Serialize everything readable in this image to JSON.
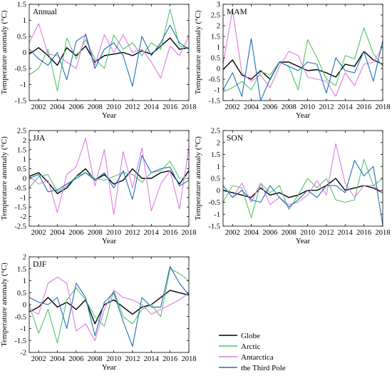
{
  "chart_data": [
    {
      "type": "line",
      "title": "Annual",
      "xlabel": "Year",
      "ylabel": "Temperature anomaly (°C)",
      "xlim": [
        2001,
        2018
      ],
      "ylim": [
        -1.5,
        1.5
      ],
      "yticks": [
        -1.5,
        -1,
        -0.5,
        0,
        0.5,
        1,
        1.5
      ],
      "xticks": [
        2002,
        2004,
        2006,
        2008,
        2010,
        2012,
        2014,
        2016,
        2018
      ],
      "x": [
        2001,
        2002,
        2003,
        2004,
        2005,
        2006,
        2007,
        2008,
        2009,
        2010,
        2011,
        2012,
        2013,
        2014,
        2015,
        2016,
        2017,
        2018
      ],
      "series": [
        {
          "name": "Globe",
          "color": "#000000",
          "values": [
            -0.05,
            0.15,
            -0.1,
            -0.4,
            0.15,
            -0.1,
            0.2,
            -0.3,
            -0.1,
            -0.05,
            0.0,
            -0.1,
            0.05,
            -0.05,
            0.2,
            0.45,
            0.1,
            0.15
          ]
        },
        {
          "name": "Arctic",
          "color": "#56c26b",
          "values": [
            -0.7,
            -0.5,
            0.1,
            -1.2,
            0.45,
            -0.2,
            0.4,
            -0.2,
            -0.5,
            0.55,
            0.1,
            0.3,
            -0.1,
            0.3,
            0.1,
            1.35,
            0.2,
            0.15
          ]
        },
        {
          "name": "Antarctica",
          "color": "#e07be0",
          "values": [
            0.3,
            0.9,
            -0.05,
            -0.1,
            -0.3,
            -0.5,
            0.6,
            -0.4,
            0.55,
            0.0,
            0.55,
            0.0,
            0.1,
            -0.3,
            -0.8,
            0.2,
            -0.1,
            0.5
          ]
        },
        {
          "name": "the Third Pole",
          "color": "#1f6fb5",
          "values": [
            0.1,
            -0.2,
            -0.4,
            0.0,
            -0.85,
            0.35,
            0.55,
            -0.5,
            0.1,
            0.3,
            -0.1,
            -1.05,
            0.5,
            -0.1,
            0.3,
            0.85,
            0.3,
            0.1
          ]
        }
      ]
    },
    {
      "type": "line",
      "title": "MAM",
      "xlabel": "Year",
      "ylabel": "Temperature anomaly (°C)",
      "xlim": [
        2001,
        2018
      ],
      "ylim": [
        -1.5,
        3
      ],
      "yticks": [
        -1.5,
        -1,
        -0.5,
        0,
        0.5,
        1,
        1.5,
        2,
        2.5,
        3
      ],
      "xticks": [
        2002,
        2004,
        2006,
        2008,
        2010,
        2012,
        2014,
        2016,
        2018
      ],
      "x": [
        2001,
        2002,
        2003,
        2004,
        2005,
        2006,
        2007,
        2008,
        2009,
        2010,
        2011,
        2012,
        2013,
        2014,
        2015,
        2016,
        2017,
        2018
      ],
      "series": [
        {
          "name": "Globe",
          "color": "#000000",
          "values": [
            -0.05,
            0.4,
            -0.3,
            -0.5,
            -0.1,
            -0.5,
            0.3,
            0.3,
            0.1,
            -0.1,
            -0.05,
            -0.2,
            -0.4,
            0.2,
            0.1,
            0.8,
            0.4,
            0.2
          ]
        },
        {
          "name": "Arctic",
          "color": "#56c26b",
          "values": [
            -1.1,
            -0.9,
            -0.6,
            -1.0,
            -0.15,
            -0.3,
            0.3,
            0.1,
            -1.0,
            1.35,
            0.5,
            -0.5,
            -0.8,
            0.6,
            0.45,
            1.9,
            0.7,
            0.1
          ]
        },
        {
          "name": "Antarctica",
          "color": "#e07be0",
          "values": [
            0.2,
            2.75,
            -0.2,
            -0.6,
            -0.3,
            -0.9,
            0.1,
            0.8,
            0.6,
            -0.4,
            -0.5,
            -0.6,
            -1.3,
            -0.2,
            -0.8,
            0.2,
            0.3,
            1.0
          ]
        },
        {
          "name": "the Third Pole",
          "color": "#1f6fb5",
          "values": [
            -1.0,
            -0.2,
            -1.3,
            1.4,
            -1.5,
            -0.5,
            0.3,
            0.1,
            -0.1,
            0.3,
            0.2,
            -1.15,
            0.5,
            -0.1,
            -0.2,
            0.8,
            -0.6,
            1.3
          ]
        }
      ]
    },
    {
      "type": "line",
      "title": "JJA",
      "xlabel": "Year",
      "ylabel": "Temperature anomaly (°C)",
      "xlim": [
        2001,
        2018
      ],
      "ylim": [
        -2.5,
        2.5
      ],
      "yticks": [
        -2.5,
        -2,
        -1.5,
        -1,
        -0.5,
        0,
        0.5,
        1,
        1.5,
        2,
        2.5
      ],
      "xticks": [
        2002,
        2004,
        2006,
        2008,
        2010,
        2012,
        2014,
        2016,
        2018
      ],
      "x": [
        2001,
        2002,
        2003,
        2004,
        2005,
        2006,
        2007,
        2008,
        2009,
        2010,
        2011,
        2012,
        2013,
        2014,
        2015,
        2016,
        2017,
        2018
      ],
      "series": [
        {
          "name": "Globe",
          "color": "#000000",
          "values": [
            0.1,
            0.3,
            -0.2,
            -0.8,
            -0.5,
            0.1,
            0.5,
            -0.1,
            0.2,
            -0.3,
            -0.1,
            0.5,
            0.0,
            0.0,
            0.3,
            0.4,
            -0.3,
            0.4
          ]
        },
        {
          "name": "Arctic",
          "color": "#56c26b",
          "values": [
            -0.5,
            0.1,
            0.2,
            -0.7,
            -0.4,
            0.1,
            0.3,
            0.0,
            -0.1,
            0.1,
            0.3,
            0.2,
            -0.2,
            0.3,
            0.4,
            0.9,
            0.0,
            0.0
          ]
        },
        {
          "name": "Antarctica",
          "color": "#e07be0",
          "values": [
            0.1,
            -0.3,
            -0.1,
            -1.8,
            0.2,
            0.6,
            2.1,
            -0.4,
            1.5,
            -1.9,
            1.4,
            -0.5,
            1.6,
            -1.7,
            -0.3,
            0.4,
            -1.6,
            1.6
          ]
        },
        {
          "name": "the Third Pole",
          "color": "#1f6fb5",
          "values": [
            0.0,
            0.2,
            -0.7,
            -0.6,
            -0.3,
            0.0,
            0.3,
            -0.1,
            0.3,
            -0.5,
            0.4,
            -1.1,
            1.2,
            0.3,
            0.5,
            0.6,
            -0.4,
            -0.1
          ]
        }
      ]
    },
    {
      "type": "line",
      "title": "SON",
      "xlabel": "Year",
      "ylabel": "Temperature anomaly (°C)",
      "xlim": [
        2001,
        2018
      ],
      "ylim": [
        -1.5,
        2.5
      ],
      "yticks": [
        -1.5,
        -1,
        -0.5,
        0,
        0.5,
        1,
        1.5,
        2,
        2.5
      ],
      "xticks": [
        2002,
        2004,
        2006,
        2008,
        2010,
        2012,
        2014,
        2016,
        2018
      ],
      "x": [
        2001,
        2002,
        2003,
        2004,
        2005,
        2006,
        2007,
        2008,
        2009,
        2010,
        2011,
        2012,
        2013,
        2014,
        2015,
        2016,
        2017,
        2018
      ],
      "series": [
        {
          "name": "Globe",
          "color": "#000000",
          "values": [
            0.0,
            -0.1,
            -0.2,
            -0.3,
            0.1,
            -0.2,
            -0.1,
            -0.3,
            -0.2,
            0.0,
            0.0,
            0.2,
            0.5,
            0.0,
            0.1,
            0.2,
            0.1,
            -0.1
          ]
        },
        {
          "name": "Arctic",
          "color": "#56c26b",
          "values": [
            -0.5,
            0.2,
            0.1,
            -1.15,
            0.3,
            -0.1,
            0.2,
            -0.8,
            -0.2,
            0.5,
            0.1,
            0.5,
            -0.4,
            -0.5,
            -0.4,
            1.3,
            0.2,
            0.5
          ]
        },
        {
          "name": "Antarctica",
          "color": "#e07be0",
          "values": [
            0.2,
            -0.3,
            0.3,
            -0.5,
            0.3,
            -0.6,
            -0.3,
            -0.6,
            -0.5,
            -0.2,
            0.4,
            -0.2,
            1.95,
            0.3,
            -0.3,
            0.2,
            0.2,
            -0.1
          ]
        },
        {
          "name": "the Third Pole",
          "color": "#1f6fb5",
          "values": [
            0.2,
            -0.3,
            0.0,
            -0.4,
            -0.5,
            0.2,
            -0.3,
            -0.7,
            -0.4,
            0.0,
            -0.3,
            0.2,
            0.2,
            -0.1,
            1.25,
            0.6,
            1.0,
            -1.45
          ]
        }
      ]
    },
    {
      "type": "line",
      "title": "DJF",
      "xlabel": "Year",
      "ylabel": "Temperature anomaly (°C)",
      "xlim": [
        2001,
        2018
      ],
      "ylim": [
        -2,
        2
      ],
      "yticks": [
        -2,
        -1.5,
        -1,
        -0.5,
        0,
        0.5,
        1,
        1.5,
        2
      ],
      "xticks": [
        2002,
        2004,
        2006,
        2008,
        2010,
        2012,
        2014,
        2016,
        2018
      ],
      "x": [
        2001,
        2002,
        2003,
        2004,
        2005,
        2006,
        2007,
        2008,
        2009,
        2010,
        2011,
        2012,
        2013,
        2014,
        2015,
        2016,
        2017,
        2018
      ],
      "series": [
        {
          "name": "Globe",
          "color": "#000000",
          "values": [
            -0.3,
            -0.1,
            0.3,
            -0.1,
            0.1,
            -0.2,
            0.2,
            -0.8,
            0.0,
            0.2,
            -0.1,
            -0.4,
            -0.1,
            0.0,
            0.3,
            0.6,
            0.5,
            0.4
          ]
        },
        {
          "name": "Arctic",
          "color": "#56c26b",
          "values": [
            0.0,
            -1.2,
            -0.2,
            -1.6,
            0.2,
            0.7,
            0.2,
            -0.5,
            -0.9,
            0.6,
            -0.5,
            -0.8,
            -0.2,
            0.0,
            -0.5,
            1.5,
            1.3,
            1.0
          ]
        },
        {
          "name": "Antarctica",
          "color": "#e07be0",
          "values": [
            -0.2,
            -0.4,
            0.9,
            1.15,
            0.9,
            -1.1,
            -0.8,
            -1.5,
            -0.2,
            0.6,
            0.3,
            0.2,
            0.0,
            -0.4,
            -0.2,
            0.0,
            0.2,
            0.5
          ]
        },
        {
          "name": "the Third Pole",
          "color": "#1f6fb5",
          "values": [
            0.3,
            0.1,
            0.0,
            0.3,
            -1.0,
            0.9,
            0.3,
            -1.3,
            0.1,
            0.5,
            -0.7,
            -1.75,
            0.3,
            -0.1,
            -0.1,
            1.6,
            0.9,
            0.4
          ]
        }
      ]
    }
  ],
  "legend": {
    "items": [
      {
        "label": "Globe",
        "color": "#000000"
      },
      {
        "label": "Arctic",
        "color": "#56c26b"
      },
      {
        "label": "Antarctica",
        "color": "#e07be0"
      },
      {
        "label": "the Third Pole",
        "color": "#1f6fb5"
      }
    ]
  }
}
